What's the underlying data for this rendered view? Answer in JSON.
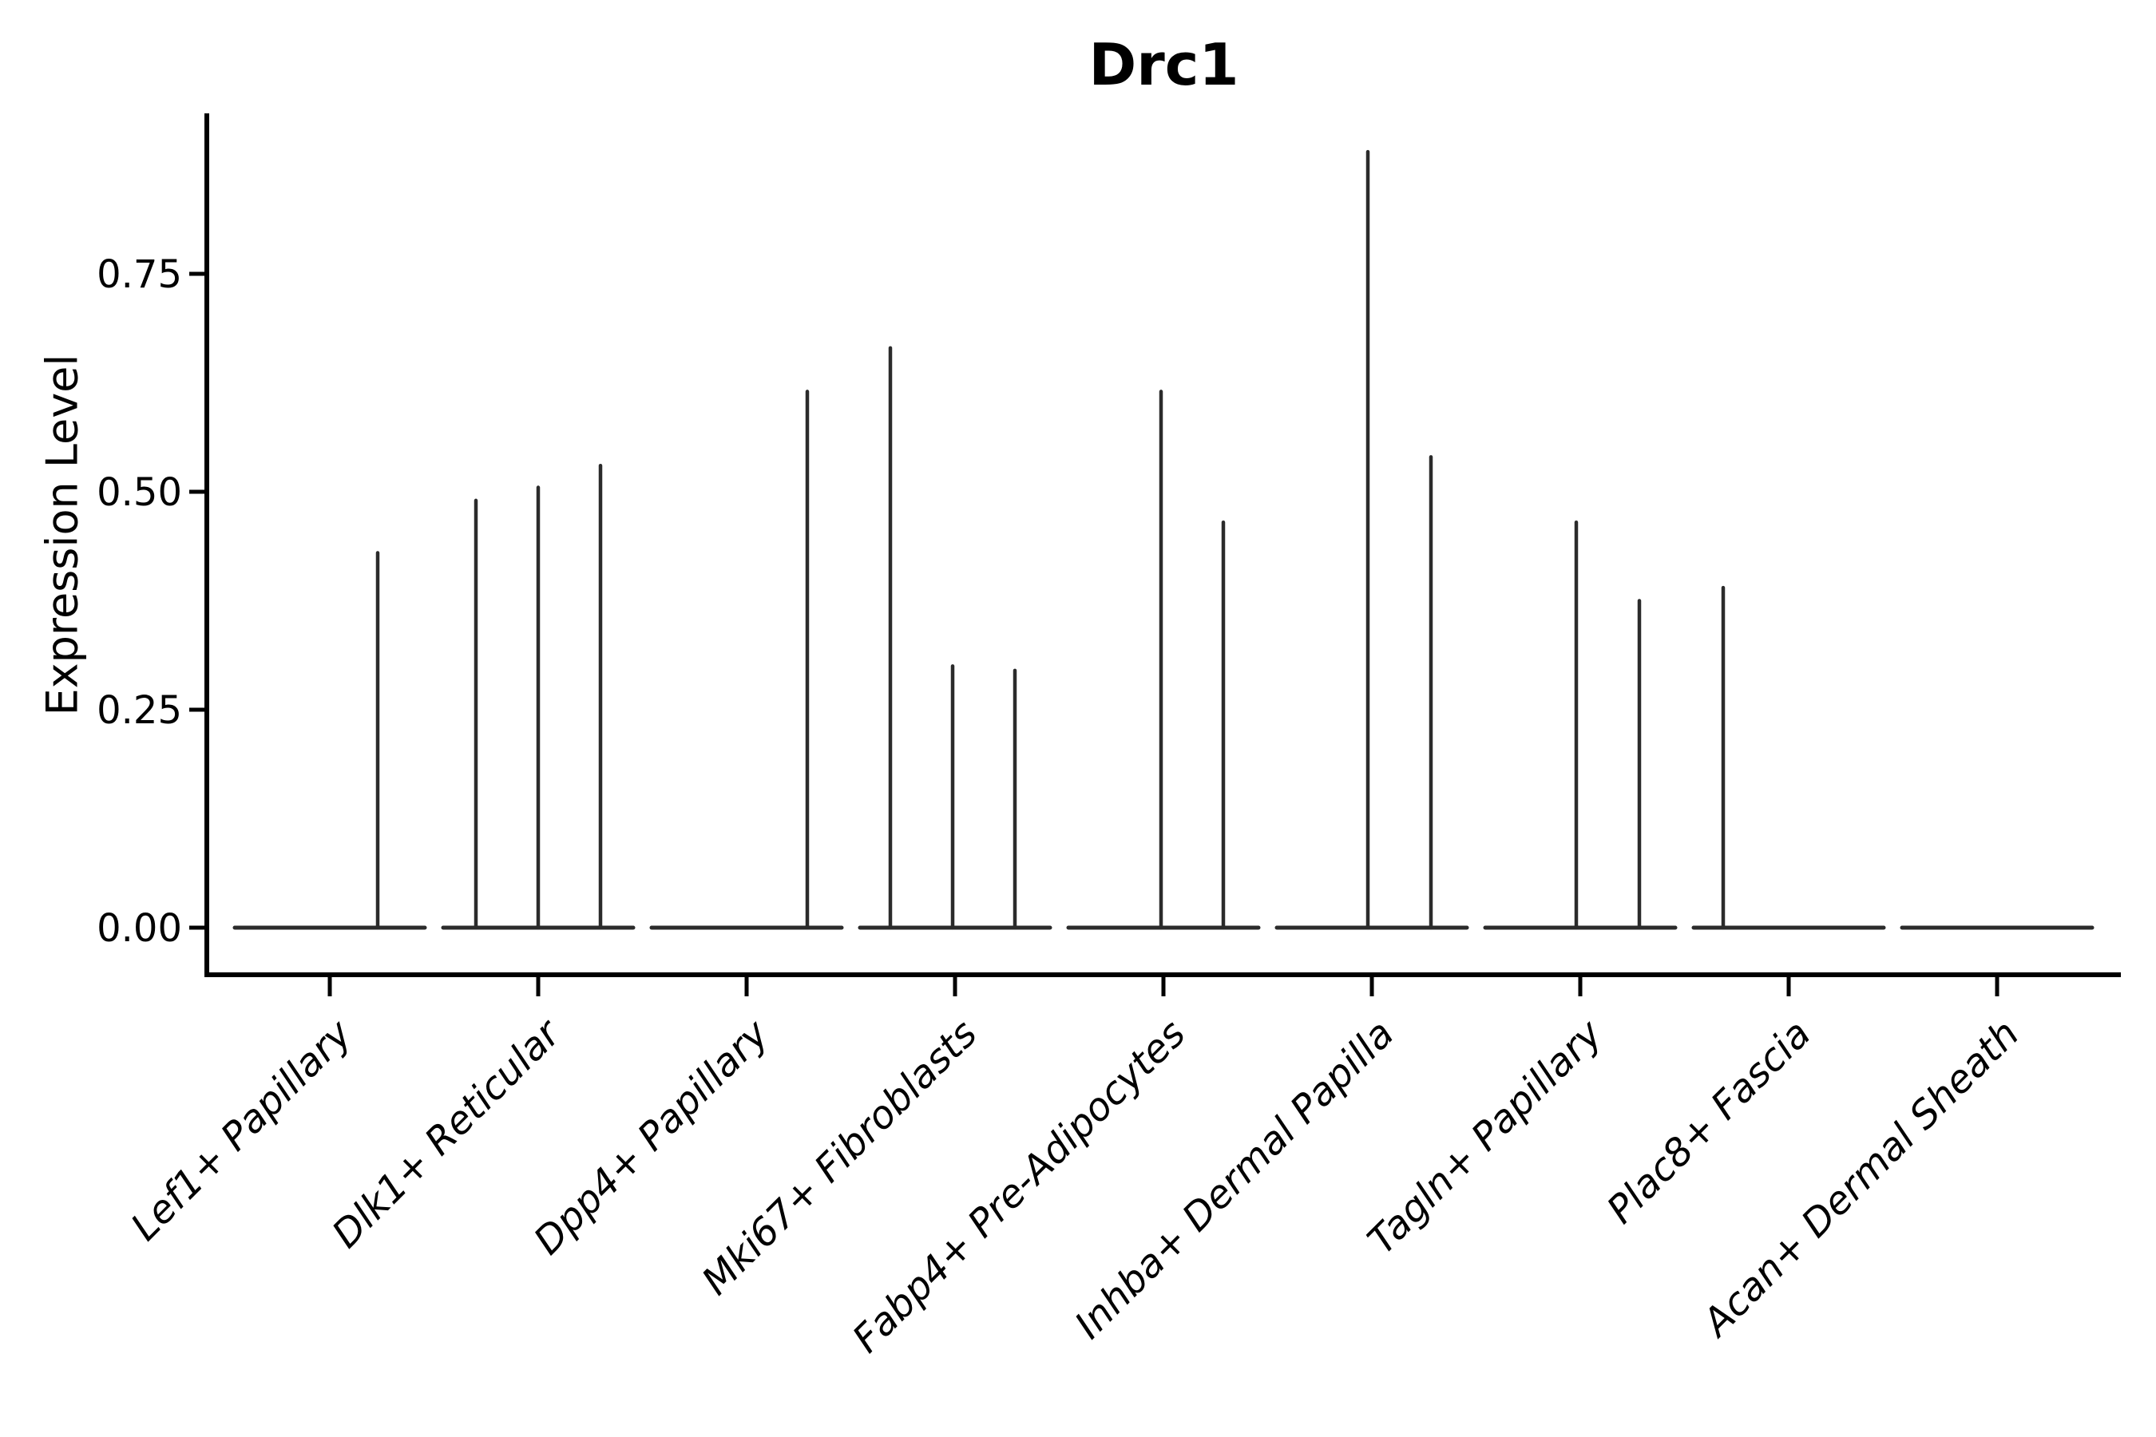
{
  "chart_data": {
    "type": "violin",
    "title": "Drc1",
    "ylabel": "Expression Level",
    "xlabel": "",
    "ylim": [
      0,
      0.93
    ],
    "grid": false,
    "legend": false,
    "yticks": [
      {
        "value": 0.0,
        "label": "0.00"
      },
      {
        "value": 0.25,
        "label": "0.25"
      },
      {
        "value": 0.5,
        "label": "0.50"
      },
      {
        "value": 0.75,
        "label": "0.75"
      }
    ],
    "categories": [
      "Lef1+ Papillary",
      "Dlk1+ Reticular",
      "Dpp4+ Papillary",
      "Mki67+ Fibroblasts",
      "Fabp4+ Pre-Adipocytes",
      "Inhba+ Dermal Papilla",
      "Tagln+ Papillary",
      "Plac8+ Fascia",
      "Acan+ Dermal Sheath"
    ],
    "groups": [
      {
        "category": "Lef1+ Papillary",
        "baseline_value": 0,
        "spikes": [
          {
            "offset": 60,
            "value": 0.43
          }
        ]
      },
      {
        "category": "Dlk1+ Reticular",
        "baseline_value": 0,
        "spikes": [
          {
            "offset": -78,
            "value": 0.49
          },
          {
            "offset": 0,
            "value": 0.505
          },
          {
            "offset": 78,
            "value": 0.53
          }
        ]
      },
      {
        "category": "Dpp4+ Papillary",
        "baseline_value": 0,
        "spikes": [
          {
            "offset": 76,
            "value": 0.615
          }
        ]
      },
      {
        "category": "Mki67+ Fibroblasts",
        "baseline_value": 0,
        "spikes": [
          {
            "offset": -81,
            "value": 0.665
          },
          {
            "offset": -3,
            "value": 0.3
          },
          {
            "offset": 75,
            "value": 0.295
          }
        ]
      },
      {
        "category": "Fabp4+ Pre-Adipocytes",
        "baseline_value": 0,
        "spikes": [
          {
            "offset": -3,
            "value": 0.615
          },
          {
            "offset": 75,
            "value": 0.465
          }
        ]
      },
      {
        "category": "Inhba+ Dermal Papilla",
        "baseline_value": 0,
        "spikes": [
          {
            "offset": -5,
            "value": 0.89
          },
          {
            "offset": 74,
            "value": 0.54
          }
        ]
      },
      {
        "category": "Tagln+ Papillary",
        "baseline_value": 0,
        "spikes": [
          {
            "offset": -5,
            "value": 0.465
          },
          {
            "offset": 74,
            "value": 0.375
          }
        ]
      },
      {
        "category": "Plac8+ Fascia",
        "baseline_value": 0,
        "spikes": [
          {
            "offset": -82,
            "value": 0.39
          }
        ]
      },
      {
        "category": "Acan+ Dermal Sheath",
        "baseline_value": 0,
        "spikes": []
      }
    ],
    "colors": {
      "violin_line": "#2b2b2b",
      "axis_line": "#000000",
      "text": "#000000",
      "background": "#ffffff"
    }
  }
}
